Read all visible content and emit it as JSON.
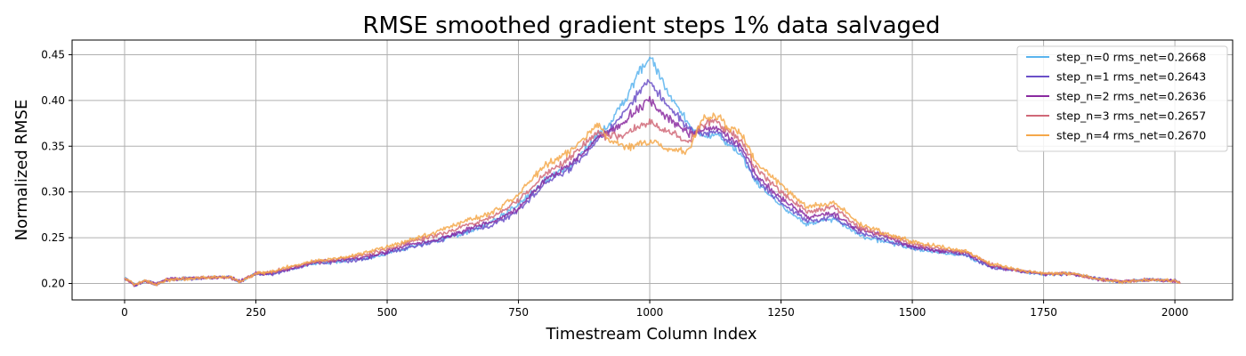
{
  "chart_data": {
    "type": "line",
    "title": "RMSE smoothed gradient steps 1% data salvaged",
    "xlabel": "Timestream Column Index",
    "ylabel": "Normalized RMSE",
    "xlim": [
      -100,
      2110
    ],
    "ylim": [
      0.182,
      0.466
    ],
    "xticks": [
      0,
      250,
      500,
      750,
      1000,
      1250,
      1500,
      1750,
      2000
    ],
    "yticks": [
      0.2,
      0.25,
      0.3,
      0.35,
      0.4,
      0.45
    ],
    "xtick_labels": [
      "0",
      "250",
      "500",
      "750",
      "1000",
      "1250",
      "1500",
      "1750",
      "2000"
    ],
    "ytick_labels": [
      "0.20",
      "0.25",
      "0.30",
      "0.35",
      "0.40",
      "0.45"
    ],
    "grid": true,
    "legend_position": "top-right",
    "x": [
      0,
      20,
      40,
      60,
      80,
      100,
      150,
      200,
      220,
      250,
      280,
      320,
      360,
      400,
      450,
      500,
      550,
      600,
      650,
      700,
      750,
      800,
      850,
      900,
      925,
      950,
      975,
      1000,
      1025,
      1050,
      1075,
      1100,
      1125,
      1150,
      1175,
      1200,
      1250,
      1300,
      1350,
      1400,
      1450,
      1500,
      1550,
      1600,
      1650,
      1700,
      1750,
      1800,
      1850,
      1900,
      1950,
      2000,
      2010
    ],
    "series": [
      {
        "name": "step_n=0 rms_net=0.2668",
        "color": "#5ab4ee",
        "values": [
          0.206,
          0.198,
          0.203,
          0.199,
          0.204,
          0.205,
          0.206,
          0.207,
          0.202,
          0.211,
          0.21,
          0.216,
          0.222,
          0.224,
          0.226,
          0.233,
          0.241,
          0.247,
          0.256,
          0.268,
          0.285,
          0.313,
          0.33,
          0.36,
          0.376,
          0.398,
          0.425,
          0.448,
          0.42,
          0.395,
          0.375,
          0.36,
          0.365,
          0.352,
          0.34,
          0.312,
          0.285,
          0.265,
          0.27,
          0.252,
          0.246,
          0.238,
          0.234,
          0.231,
          0.218,
          0.214,
          0.21,
          0.211,
          0.205,
          0.202,
          0.204,
          0.203,
          0.2
        ]
      },
      {
        "name": "step_n=1 rms_net=0.2643",
        "color": "#6b50c8",
        "values": [
          0.206,
          0.198,
          0.203,
          0.199,
          0.204,
          0.205,
          0.206,
          0.207,
          0.202,
          0.211,
          0.21,
          0.216,
          0.222,
          0.224,
          0.226,
          0.233,
          0.241,
          0.247,
          0.256,
          0.264,
          0.28,
          0.308,
          0.326,
          0.356,
          0.37,
          0.385,
          0.405,
          0.422,
          0.4,
          0.385,
          0.368,
          0.362,
          0.367,
          0.355,
          0.345,
          0.315,
          0.288,
          0.268,
          0.273,
          0.255,
          0.248,
          0.239,
          0.235,
          0.232,
          0.218,
          0.214,
          0.21,
          0.211,
          0.205,
          0.202,
          0.204,
          0.203,
          0.2
        ]
      },
      {
        "name": "step_n=2 rms_net=0.2636",
        "color": "#8a2aa0",
        "values": [
          0.206,
          0.198,
          0.203,
          0.199,
          0.204,
          0.205,
          0.206,
          0.207,
          0.202,
          0.211,
          0.211,
          0.217,
          0.223,
          0.225,
          0.228,
          0.235,
          0.243,
          0.249,
          0.259,
          0.267,
          0.283,
          0.312,
          0.33,
          0.36,
          0.366,
          0.375,
          0.39,
          0.4,
          0.385,
          0.375,
          0.363,
          0.368,
          0.372,
          0.36,
          0.35,
          0.32,
          0.293,
          0.272,
          0.277,
          0.258,
          0.25,
          0.241,
          0.236,
          0.233,
          0.219,
          0.214,
          0.21,
          0.211,
          0.205,
          0.202,
          0.204,
          0.203,
          0.2
        ]
      },
      {
        "name": "step_n=3 rms_net=0.2657",
        "color": "#d06878",
        "values": [
          0.206,
          0.198,
          0.203,
          0.199,
          0.204,
          0.205,
          0.206,
          0.207,
          0.202,
          0.211,
          0.212,
          0.218,
          0.224,
          0.226,
          0.23,
          0.238,
          0.246,
          0.253,
          0.264,
          0.272,
          0.29,
          0.32,
          0.338,
          0.365,
          0.36,
          0.362,
          0.37,
          0.375,
          0.368,
          0.362,
          0.355,
          0.374,
          0.378,
          0.366,
          0.356,
          0.327,
          0.3,
          0.278,
          0.283,
          0.262,
          0.253,
          0.243,
          0.238,
          0.235,
          0.22,
          0.215,
          0.21,
          0.211,
          0.205,
          0.202,
          0.204,
          0.203,
          0.2
        ]
      },
      {
        "name": "step_n=4 rms_net=0.2670",
        "color": "#f5a84a",
        "values": [
          0.206,
          0.198,
          0.203,
          0.199,
          0.204,
          0.205,
          0.206,
          0.207,
          0.202,
          0.211,
          0.213,
          0.219,
          0.225,
          0.227,
          0.232,
          0.24,
          0.249,
          0.257,
          0.268,
          0.278,
          0.297,
          0.328,
          0.346,
          0.372,
          0.355,
          0.35,
          0.352,
          0.355,
          0.35,
          0.345,
          0.345,
          0.38,
          0.383,
          0.372,
          0.362,
          0.334,
          0.307,
          0.284,
          0.288,
          0.265,
          0.255,
          0.245,
          0.24,
          0.236,
          0.221,
          0.215,
          0.211,
          0.211,
          0.205,
          0.202,
          0.204,
          0.203,
          0.2
        ]
      }
    ]
  }
}
